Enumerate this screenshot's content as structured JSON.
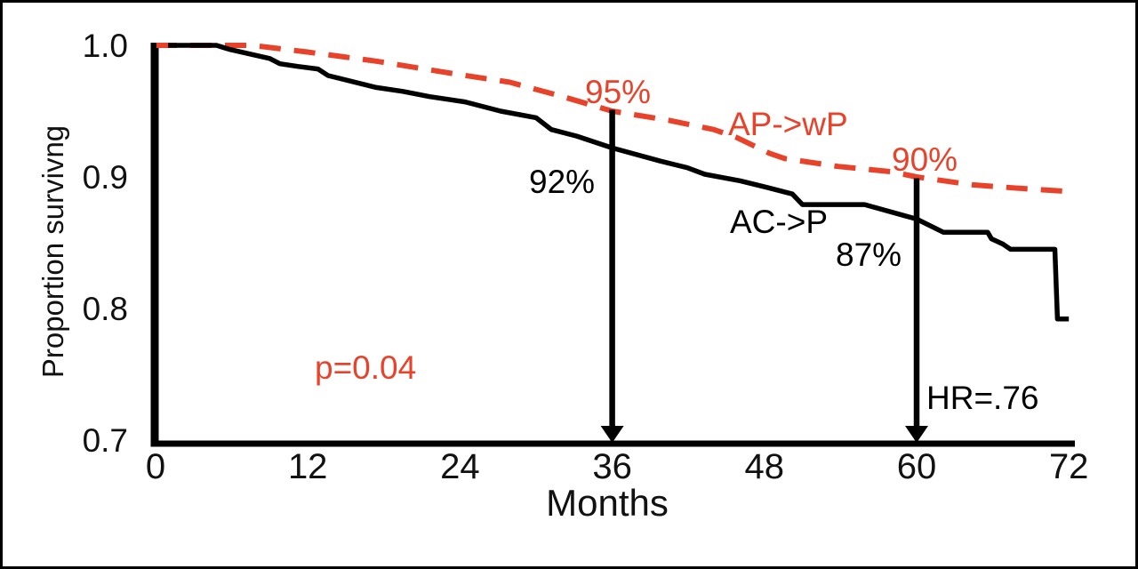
{
  "figure": {
    "background_color": "#ffffff",
    "frame_color": "#000000"
  },
  "chart_data": {
    "type": "line",
    "subtype": "kaplan-meier-survival-curve",
    "title": "",
    "xlabel": "Months",
    "ylabel": "Proportion survivng",
    "xlim": [
      0,
      72
    ],
    "ylim": [
      0.7,
      1.0
    ],
    "grid": false,
    "legend_position": "inline-labels",
    "xticks": [
      "0",
      "12",
      "24",
      "36",
      "48",
      "60",
      "72"
    ],
    "yticks": [
      {
        "label": "1.0",
        "value": 1.0
      },
      {
        "label": "0.9",
        "value": 0.9
      },
      {
        "label": "0.8",
        "value": 0.8
      },
      {
        "label": "0.7",
        "value": 0.7
      }
    ],
    "accent_color": "#e8432a",
    "series": [
      {
        "name": "AP->wP",
        "color": "#e8432a",
        "line_style": "dashed",
        "points": [
          [
            0,
            1.0
          ],
          [
            7.6,
            1.0
          ],
          [
            11.9,
            0.995
          ],
          [
            17.4,
            0.988
          ],
          [
            23.8,
            0.978
          ],
          [
            27.9,
            0.972
          ],
          [
            32.1,
            0.961
          ],
          [
            36.0,
            0.95
          ],
          [
            40.5,
            0.943
          ],
          [
            44.0,
            0.936
          ],
          [
            45.8,
            0.93
          ],
          [
            48.4,
            0.918
          ],
          [
            49.6,
            0.914
          ],
          [
            53.8,
            0.908
          ],
          [
            58.0,
            0.904
          ],
          [
            60.0,
            0.9
          ],
          [
            64.4,
            0.894
          ],
          [
            68.6,
            0.891
          ],
          [
            72.0,
            0.889
          ]
        ]
      },
      {
        "name": "AC->P",
        "color": "#000000",
        "line_style": "solid",
        "points": [
          [
            0,
            1.0
          ],
          [
            4.8,
            1.0
          ],
          [
            5.8,
            0.997
          ],
          [
            9.0,
            0.99
          ],
          [
            9.8,
            0.986
          ],
          [
            11.2,
            0.984
          ],
          [
            12.8,
            0.982
          ],
          [
            13.6,
            0.977
          ],
          [
            17.4,
            0.968
          ],
          [
            19.5,
            0.965
          ],
          [
            21.6,
            0.961
          ],
          [
            24.4,
            0.957
          ],
          [
            27.2,
            0.95
          ],
          [
            30.0,
            0.945
          ],
          [
            31.2,
            0.936
          ],
          [
            33.2,
            0.931
          ],
          [
            36.0,
            0.922
          ],
          [
            39.8,
            0.912
          ],
          [
            41.9,
            0.907
          ],
          [
            43.3,
            0.902
          ],
          [
            46.1,
            0.897
          ],
          [
            48.2,
            0.892
          ],
          [
            50.2,
            0.887
          ],
          [
            51.0,
            0.879
          ],
          [
            55.9,
            0.879
          ],
          [
            60.0,
            0.868
          ],
          [
            62.1,
            0.858
          ],
          [
            65.6,
            0.858
          ],
          [
            65.9,
            0.853
          ],
          [
            66.8,
            0.849
          ],
          [
            67.4,
            0.845
          ],
          [
            70.9,
            0.845
          ],
          [
            71.1,
            0.792
          ],
          [
            72.0,
            0.792
          ]
        ]
      }
    ],
    "survival_at_timepoints": {
      "36_months": {
        "AP->wP": "95%",
        "AC->P": "92%"
      },
      "60_months": {
        "AP->wP": "90%",
        "AC->P": "87%"
      }
    },
    "arrows": [
      {
        "x_months": 36,
        "from_proportion": 0.951,
        "to_proportion": 0.7
      },
      {
        "x_months": 60,
        "from_proportion": 0.899,
        "to_proportion": 0.7
      }
    ],
    "annotations": [
      {
        "id": "ap-value-36mo",
        "text": "95%",
        "color": "#e8432a"
      },
      {
        "id": "ac-value-36mo",
        "text": "92%",
        "color": "#000000"
      },
      {
        "id": "ap-value-60mo",
        "text": "90%",
        "color": "#e8432a"
      },
      {
        "id": "ac-value-60mo",
        "text": "87%",
        "color": "#000000"
      },
      {
        "id": "ap-series-label",
        "text": "AP->wP",
        "color": "#e8432a"
      },
      {
        "id": "ac-series-label",
        "text": "AC->P",
        "color": "#000000"
      },
      {
        "id": "p-value",
        "text": "p=0.04",
        "color": "#e8432a"
      },
      {
        "id": "hazard-ratio",
        "text": "HR=.76",
        "color": "#000000"
      }
    ]
  }
}
